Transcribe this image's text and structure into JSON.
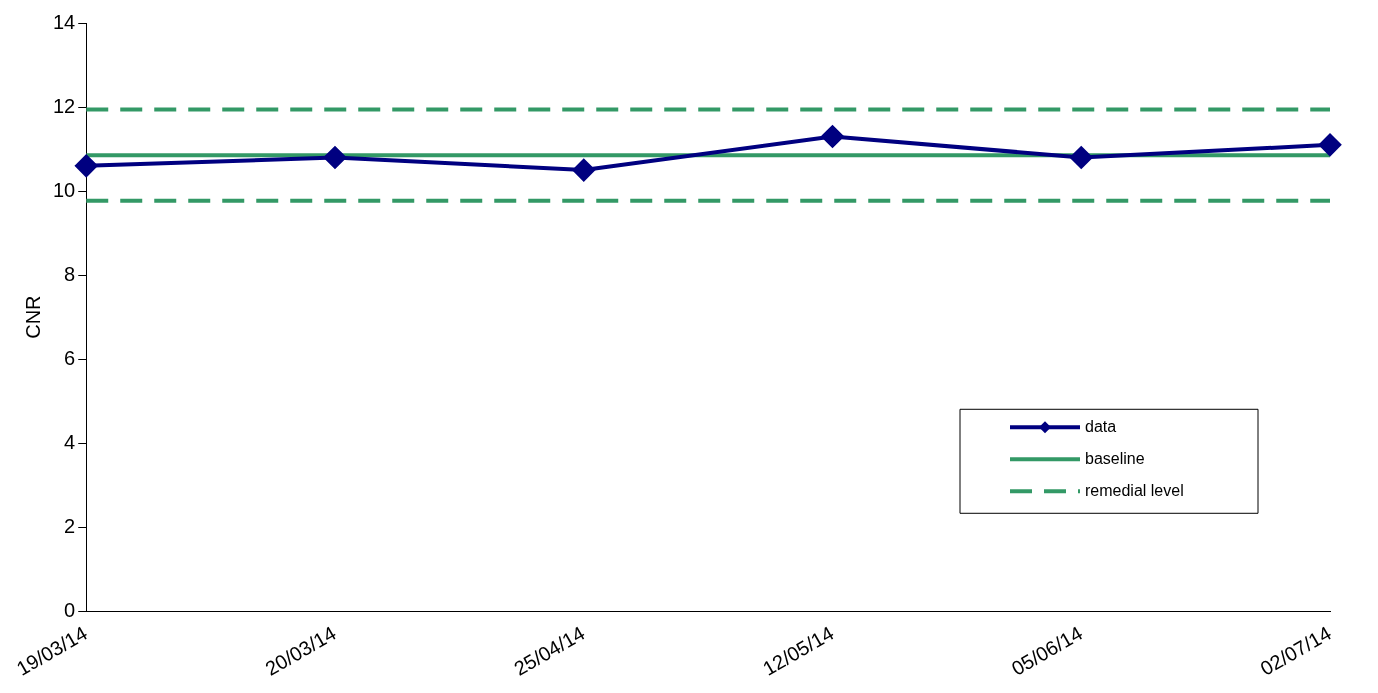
{
  "chart_data": {
    "type": "line",
    "ylabel": "CNR",
    "categories": [
      "19/03/14",
      "20/03/14",
      "25/04/14",
      "12/05/14",
      "05/06/14",
      "02/07/14"
    ],
    "series": [
      {
        "name": "data",
        "color": "#000080",
        "marker": "diamond",
        "line_style": "solid",
        "values": [
          10.6,
          10.8,
          10.5,
          11.3,
          10.8,
          11.1
        ]
      },
      {
        "name": "baseline",
        "color": "#339966",
        "marker": "none",
        "line_style": "solid",
        "values": [
          10.85,
          10.85,
          10.85,
          10.85,
          10.85,
          10.85
        ]
      },
      {
        "name": "remedial level",
        "color": "#339966",
        "marker": "none",
        "line_style": "dashed",
        "values": [
          11.94,
          11.94,
          11.94,
          11.94,
          11.94,
          11.94
        ]
      },
      {
        "color": "#339966",
        "marker": "none",
        "line_style": "dashed",
        "values": [
          9.77,
          9.77,
          9.77,
          9.77,
          9.77,
          9.77
        ]
      }
    ],
    "ylim": [
      0,
      14
    ],
    "yticks": [
      0,
      2,
      4,
      6,
      8,
      10,
      12,
      14
    ],
    "grid": false,
    "legend": "bottom right"
  }
}
